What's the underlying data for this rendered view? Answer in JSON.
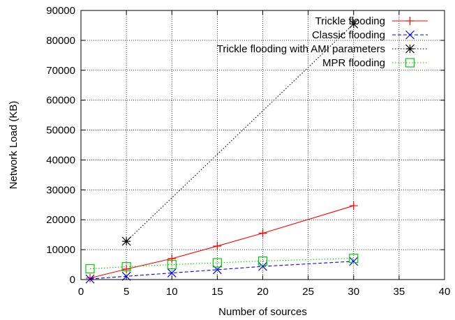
{
  "chart_data": {
    "type": "line",
    "xlabel": "Number of sources",
    "ylabel": "Network Load (KB)",
    "xlim": [
      0,
      40
    ],
    "ylim": [
      0,
      90000
    ],
    "xticks": [
      0,
      5,
      10,
      15,
      20,
      25,
      30,
      35,
      40
    ],
    "yticks": [
      0,
      10000,
      20000,
      30000,
      40000,
      50000,
      60000,
      70000,
      80000,
      90000
    ],
    "xtick_labels": [
      "0",
      "5",
      "10",
      "15",
      "20",
      "25",
      "30",
      "35",
      "40"
    ],
    "ytick_labels": [
      "0",
      "10000",
      "20000",
      "30000",
      "40000",
      "50000",
      "60000",
      "70000",
      "80000",
      "90000"
    ],
    "grid": true,
    "legend_position": "top-right",
    "series": [
      {
        "name": "Trickle flooding",
        "color": "#ff0000",
        "line_style": "solid",
        "marker": "plus",
        "x": [
          1,
          5,
          10,
          15,
          20,
          30
        ],
        "values": [
          500,
          3500,
          7000,
          11200,
          15500,
          24700
        ]
      },
      {
        "name": "Classic flooding",
        "color": "#0000ff",
        "line_style": "dashed",
        "marker": "x",
        "x": [
          1,
          5,
          10,
          15,
          20,
          30
        ],
        "values": [
          200,
          1100,
          2200,
          3300,
          4400,
          6100
        ]
      },
      {
        "name": "Trickle flooding with AMI parameters",
        "color": "#000000",
        "line_style": "dotted",
        "marker": "star",
        "x": [
          5,
          30
        ],
        "values": [
          12800,
          85500
        ]
      },
      {
        "name": "MPR flooding",
        "color": "#00cc00",
        "line_style": "dotted",
        "marker": "square",
        "x": [
          1,
          5,
          10,
          15,
          20,
          30
        ],
        "values": [
          3600,
          4300,
          5000,
          5600,
          6200,
          7100
        ]
      }
    ]
  }
}
